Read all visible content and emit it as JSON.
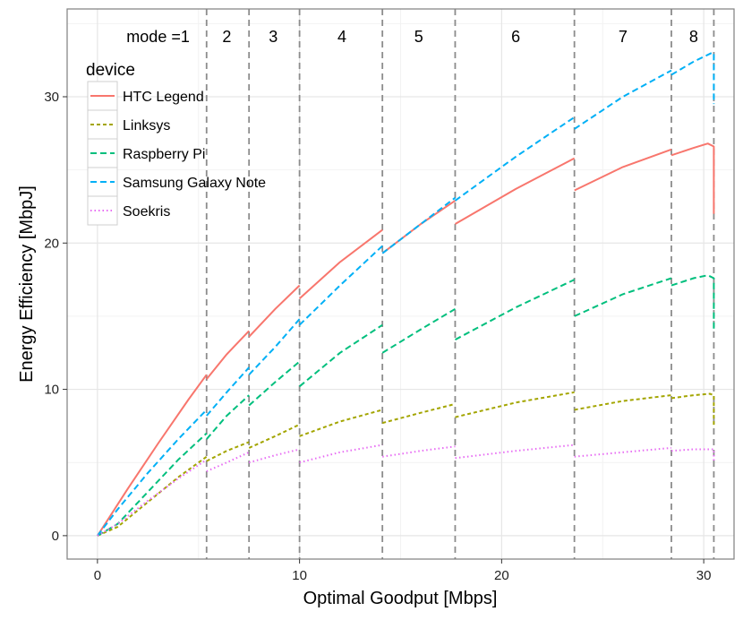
{
  "chart_data": {
    "type": "line",
    "title": "",
    "xlabel": "Optimal Goodput [Mbps]",
    "ylabel": "Energy Efficiency [MbpJ]",
    "xlim": [
      -1.5,
      31.5
    ],
    "ylim": [
      -1.6,
      36
    ],
    "x_ticks": [
      0,
      10,
      20,
      30
    ],
    "y_ticks": [
      0,
      10,
      20,
      30
    ],
    "grid": true,
    "legend": {
      "title": "device",
      "position": "top-left",
      "entries": [
        "HTC Legend",
        "Linksys",
        "Raspberry Pi",
        "Samsung Galaxy Note",
        "Soekris"
      ]
    },
    "mode_labels": [
      {
        "text": "mode =1",
        "x": 3.0
      },
      {
        "text": "2",
        "x": 6.4
      },
      {
        "text": "3",
        "x": 8.7
      },
      {
        "text": "4",
        "x": 12.1
      },
      {
        "text": "5",
        "x": 15.9
      },
      {
        "text": "6",
        "x": 20.7
      },
      {
        "text": "7",
        "x": 26.0
      },
      {
        "text": "8",
        "x": 29.5
      }
    ],
    "mode_boundaries": [
      5.4,
      7.5,
      10.0,
      14.1,
      17.7,
      23.6,
      28.4,
      30.5
    ],
    "segments": [
      [
        0,
        5.4
      ],
      [
        5.4,
        7.5
      ],
      [
        7.5,
        10.0
      ],
      [
        10.0,
        14.1
      ],
      [
        14.1,
        17.7
      ],
      [
        17.7,
        23.6
      ],
      [
        23.6,
        28.4
      ],
      [
        28.4,
        30.5
      ]
    ],
    "series": [
      {
        "name": "HTC Legend",
        "color": "#F8766D",
        "dash": "none",
        "segments": [
          [
            [
              0,
              0
            ],
            [
              1.5,
              3.2
            ],
            [
              3.0,
              6.3
            ],
            [
              4.5,
              9.3
            ],
            [
              5.4,
              11.0
            ]
          ],
          [
            [
              5.4,
              10.7
            ],
            [
              6.4,
              12.4
            ],
            [
              7.5,
              14.0
            ]
          ],
          [
            [
              7.5,
              13.6
            ],
            [
              8.8,
              15.5
            ],
            [
              10.0,
              17.1
            ]
          ],
          [
            [
              10.0,
              16.2
            ],
            [
              12.0,
              18.7
            ],
            [
              14.1,
              20.9
            ]
          ],
          [
            [
              14.1,
              19.3
            ],
            [
              16.0,
              21.3
            ],
            [
              17.7,
              22.9
            ]
          ],
          [
            [
              17.7,
              21.3
            ],
            [
              20.7,
              23.7
            ],
            [
              23.6,
              25.8
            ]
          ],
          [
            [
              23.6,
              23.6
            ],
            [
              26.0,
              25.2
            ],
            [
              28.4,
              26.4
            ]
          ],
          [
            [
              28.4,
              26.0
            ],
            [
              29.5,
              26.5
            ],
            [
              30.2,
              26.8
            ],
            [
              30.5,
              26.6
            ],
            [
              30.5,
              22.0
            ]
          ]
        ]
      },
      {
        "name": "Linksys",
        "color": "#A3A500",
        "dash": "4,3",
        "segments": [
          [
            [
              0,
              0
            ],
            [
              1.0,
              0.6
            ],
            [
              2.5,
              2.3
            ],
            [
              4.0,
              4.0
            ],
            [
              5.4,
              5.4
            ]
          ],
          [
            [
              5.4,
              5.1
            ],
            [
              6.4,
              5.8
            ],
            [
              7.5,
              6.4
            ]
          ],
          [
            [
              7.5,
              6.0
            ],
            [
              8.8,
              6.8
            ],
            [
              10.0,
              7.6
            ]
          ],
          [
            [
              10.0,
              6.8
            ],
            [
              12.0,
              7.8
            ],
            [
              14.1,
              8.6
            ]
          ],
          [
            [
              14.1,
              7.7
            ],
            [
              16.0,
              8.4
            ],
            [
              17.7,
              9.0
            ]
          ],
          [
            [
              17.7,
              8.1
            ],
            [
              20.7,
              9.1
            ],
            [
              23.6,
              9.8
            ]
          ],
          [
            [
              23.6,
              8.6
            ],
            [
              26.0,
              9.2
            ],
            [
              28.4,
              9.6
            ]
          ],
          [
            [
              28.4,
              9.4
            ],
            [
              29.5,
              9.6
            ],
            [
              30.3,
              9.7
            ],
            [
              30.5,
              9.6
            ],
            [
              30.5,
              7.5
            ]
          ]
        ]
      },
      {
        "name": "Raspberry Pi",
        "color": "#00BF7D",
        "dash": "7,4",
        "segments": [
          [
            [
              0,
              0
            ],
            [
              1.0,
              0.8
            ],
            [
              2.5,
              3.0
            ],
            [
              4.0,
              5.2
            ],
            [
              5.4,
              7.0
            ]
          ],
          [
            [
              5.4,
              6.6
            ],
            [
              6.4,
              8.2
            ],
            [
              7.5,
              9.6
            ]
          ],
          [
            [
              7.5,
              8.9
            ],
            [
              8.8,
              10.5
            ],
            [
              10.0,
              11.9
            ]
          ],
          [
            [
              10.0,
              10.2
            ],
            [
              12.0,
              12.5
            ],
            [
              14.1,
              14.4
            ]
          ],
          [
            [
              14.1,
              12.5
            ],
            [
              16.0,
              14.1
            ],
            [
              17.7,
              15.5
            ]
          ],
          [
            [
              17.7,
              13.4
            ],
            [
              20.7,
              15.6
            ],
            [
              23.6,
              17.5
            ]
          ],
          [
            [
              23.6,
              15.0
            ],
            [
              26.0,
              16.5
            ],
            [
              28.4,
              17.6
            ]
          ],
          [
            [
              28.4,
              17.1
            ],
            [
              29.5,
              17.6
            ],
            [
              30.2,
              17.8
            ],
            [
              30.5,
              17.6
            ],
            [
              30.5,
              14.0
            ]
          ]
        ]
      },
      {
        "name": "Samsung Galaxy Note",
        "color": "#00B0F6",
        "dash": "7,4",
        "segments": [
          [
            [
              0,
              0
            ],
            [
              1.0,
              1.8
            ],
            [
              2.5,
              4.3
            ],
            [
              4.0,
              6.6
            ],
            [
              5.4,
              8.6
            ]
          ],
          [
            [
              5.4,
              8.2
            ],
            [
              6.4,
              9.8
            ],
            [
              7.5,
              11.5
            ]
          ],
          [
            [
              7.5,
              11.0
            ],
            [
              8.8,
              12.9
            ],
            [
              10.0,
              14.8
            ]
          ],
          [
            [
              10.0,
              14.4
            ],
            [
              12.0,
              17.1
            ],
            [
              14.1,
              19.8
            ]
          ],
          [
            [
              14.1,
              19.3
            ],
            [
              16.0,
              21.3
            ],
            [
              17.7,
              23.1
            ]
          ],
          [
            [
              17.7,
              22.9
            ],
            [
              20.7,
              25.9
            ],
            [
              23.6,
              28.6
            ]
          ],
          [
            [
              23.6,
              27.8
            ],
            [
              26.0,
              30.0
            ],
            [
              28.4,
              31.8
            ]
          ],
          [
            [
              28.4,
              31.5
            ],
            [
              29.5,
              32.4
            ],
            [
              30.4,
              33.0
            ],
            [
              30.5,
              33.0
            ],
            [
              30.5,
              29.5
            ]
          ]
        ]
      },
      {
        "name": "Soekris",
        "color": "#E76BF3",
        "dash": "1.5,3",
        "segments": [
          [
            [
              0,
              0
            ],
            [
              1.0,
              0.8
            ],
            [
              2.5,
              2.4
            ],
            [
              4.0,
              3.9
            ],
            [
              5.4,
              5.2
            ]
          ],
          [
            [
              5.4,
              4.4
            ],
            [
              6.4,
              5.0
            ],
            [
              7.5,
              5.7
            ]
          ],
          [
            [
              7.5,
              5.0
            ],
            [
              8.8,
              5.5
            ],
            [
              10.0,
              5.9
            ]
          ],
          [
            [
              10.0,
              5.0
            ],
            [
              12.0,
              5.7
            ],
            [
              14.1,
              6.2
            ]
          ],
          [
            [
              14.1,
              5.4
            ],
            [
              16.0,
              5.8
            ],
            [
              17.7,
              6.1
            ]
          ],
          [
            [
              17.7,
              5.3
            ],
            [
              20.7,
              5.8
            ],
            [
              23.6,
              6.2
            ]
          ],
          [
            [
              23.6,
              5.4
            ],
            [
              26.0,
              5.7
            ],
            [
              28.4,
              6.0
            ]
          ],
          [
            [
              28.4,
              5.8
            ],
            [
              29.5,
              5.9
            ],
            [
              30.5,
              5.9
            ],
            [
              30.5,
              5.0
            ]
          ]
        ]
      }
    ]
  }
}
